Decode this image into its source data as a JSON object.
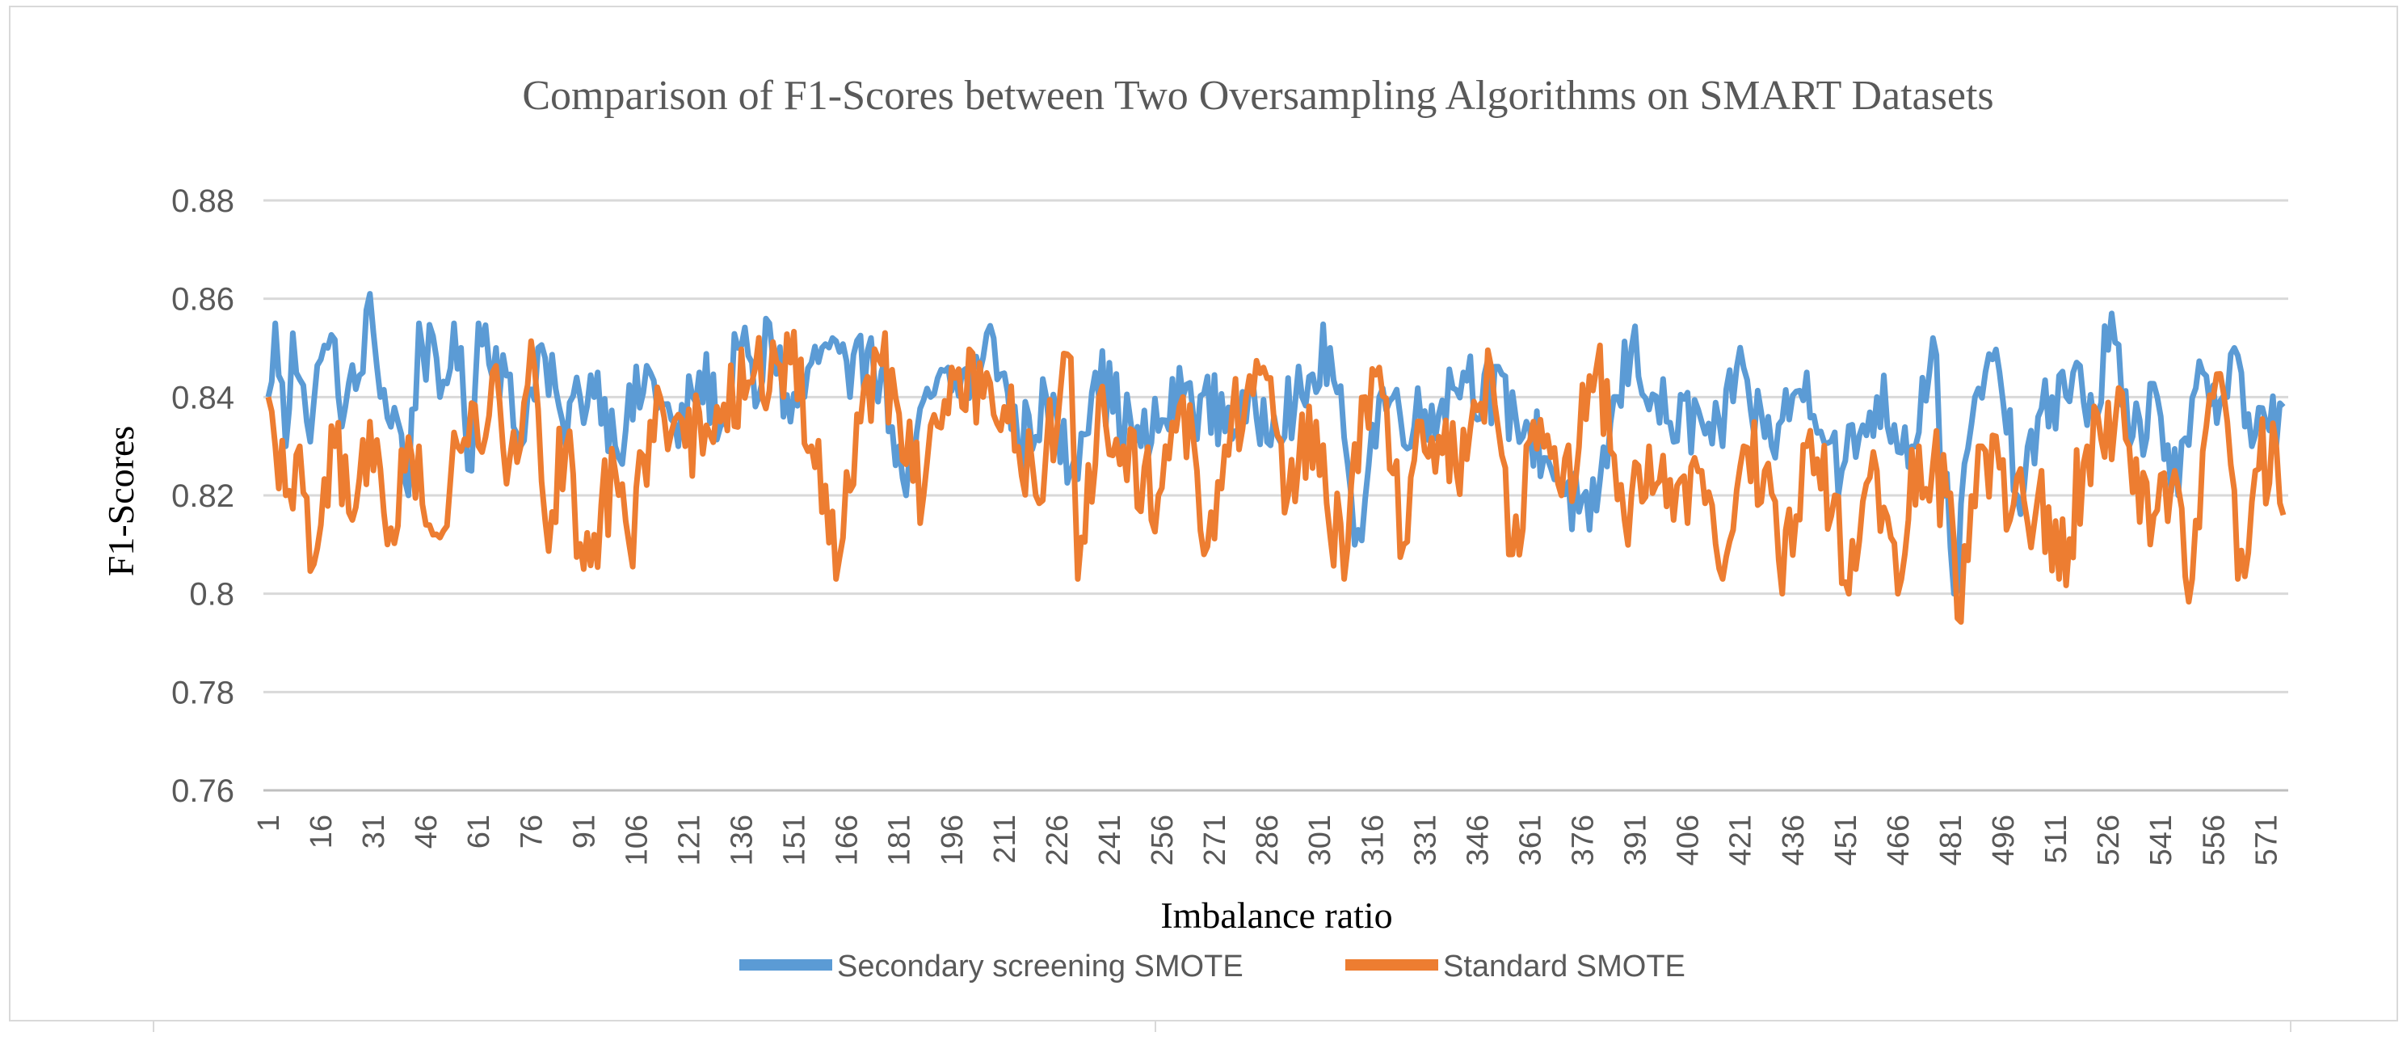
{
  "chart_data": {
    "type": "line",
    "title": "Comparison of F1-Scores between Two Oversampling Algorithms on SMART Datasets",
    "xlabel": "Imbalance ratio",
    "ylabel": "F1-Scores",
    "ylim": [
      0.76,
      0.88
    ],
    "yticks": [
      "0.76",
      "0.78",
      "0.8",
      "0.82",
      "0.84",
      "0.86",
      "0.88"
    ],
    "x_count": 576,
    "xticks": [
      1,
      16,
      31,
      46,
      61,
      76,
      91,
      106,
      121,
      136,
      151,
      166,
      181,
      196,
      211,
      226,
      241,
      256,
      271,
      286,
      301,
      316,
      331,
      346,
      361,
      376,
      391,
      406,
      421,
      436,
      451,
      466,
      481,
      496,
      511,
      526,
      541,
      556,
      571
    ],
    "grid": true,
    "legend": "bottom",
    "series": [
      {
        "name": "Secondary screening SMOTE",
        "color": "#5b9bd5",
        "profile": [
          [
            1,
            0.84
          ],
          [
            3,
            0.855
          ],
          [
            6,
            0.83
          ],
          [
            8,
            0.853
          ],
          [
            12,
            0.835
          ],
          [
            18,
            0.85
          ],
          [
            23,
            0.838
          ],
          [
            28,
            0.845
          ],
          [
            30,
            0.861
          ],
          [
            33,
            0.84
          ],
          [
            38,
            0.835
          ],
          [
            41,
            0.82
          ],
          [
            44,
            0.855
          ],
          [
            50,
            0.84
          ],
          [
            54,
            0.855
          ],
          [
            59,
            0.825
          ],
          [
            61,
            0.855
          ],
          [
            66,
            0.85
          ],
          [
            73,
            0.83
          ],
          [
            78,
            0.85
          ],
          [
            85,
            0.835
          ],
          [
            90,
            0.84
          ],
          [
            95,
            0.845
          ],
          [
            100,
            0.83
          ],
          [
            110,
            0.845
          ],
          [
            118,
            0.83
          ],
          [
            124,
            0.845
          ],
          [
            131,
            0.835
          ],
          [
            135,
            0.85
          ],
          [
            141,
            0.84
          ],
          [
            144,
            0.855
          ],
          [
            150,
            0.835
          ],
          [
            159,
            0.85
          ],
          [
            162,
            0.852
          ],
          [
            167,
            0.84
          ],
          [
            173,
            0.852
          ],
          [
            181,
            0.83
          ],
          [
            183,
            0.82
          ],
          [
            190,
            0.84
          ],
          [
            204,
            0.845
          ],
          [
            208,
            0.852
          ],
          [
            215,
            0.83
          ],
          [
            223,
            0.84
          ],
          [
            230,
            0.825
          ],
          [
            237,
            0.845
          ],
          [
            250,
            0.83
          ],
          [
            262,
            0.84
          ],
          [
            280,
            0.835
          ],
          [
            296,
            0.84
          ],
          [
            304,
            0.85
          ],
          [
            310,
            0.82
          ],
          [
            312,
            0.813
          ],
          [
            318,
            0.84
          ],
          [
            330,
            0.835
          ],
          [
            342,
            0.845
          ],
          [
            360,
            0.835
          ],
          [
            378,
            0.813
          ],
          [
            386,
            0.84
          ],
          [
            390,
            0.85
          ],
          [
            400,
            0.835
          ],
          [
            410,
            0.835
          ],
          [
            416,
            0.83
          ],
          [
            420,
            0.846
          ],
          [
            430,
            0.83
          ],
          [
            440,
            0.845
          ],
          [
            450,
            0.825
          ],
          [
            460,
            0.84
          ],
          [
            470,
            0.83
          ],
          [
            476,
            0.852
          ],
          [
            482,
            0.8
          ],
          [
            488,
            0.84
          ],
          [
            495,
            0.845
          ],
          [
            500,
            0.82
          ],
          [
            510,
            0.84
          ],
          [
            516,
            0.845
          ],
          [
            522,
            0.835
          ],
          [
            527,
            0.857
          ],
          [
            532,
            0.83
          ],
          [
            540,
            0.84
          ],
          [
            546,
            0.82
          ],
          [
            553,
            0.845
          ],
          [
            560,
            0.84
          ],
          [
            562,
            0.85
          ],
          [
            567,
            0.83
          ],
          [
            571,
            0.835
          ],
          [
            576,
            0.838
          ]
        ]
      },
      {
        "name": "Standard SMOTE",
        "color": "#ed7d31",
        "profile": [
          [
            1,
            0.84
          ],
          [
            3,
            0.83
          ],
          [
            6,
            0.82
          ],
          [
            10,
            0.83
          ],
          [
            14,
            0.806
          ],
          [
            20,
            0.83
          ],
          [
            25,
            0.815
          ],
          [
            30,
            0.835
          ],
          [
            35,
            0.81
          ],
          [
            40,
            0.825
          ],
          [
            44,
            0.83
          ],
          [
            48,
            0.812
          ],
          [
            55,
            0.83
          ],
          [
            61,
            0.83
          ],
          [
            65,
            0.845
          ],
          [
            70,
            0.828
          ],
          [
            77,
            0.846
          ],
          [
            80,
            0.815
          ],
          [
            86,
            0.83
          ],
          [
            91,
            0.805
          ],
          [
            100,
            0.825
          ],
          [
            104,
            0.81
          ],
          [
            110,
            0.835
          ],
          [
            120,
            0.83
          ],
          [
            130,
            0.835
          ],
          [
            140,
            0.846
          ],
          [
            148,
            0.84
          ],
          [
            150,
            0.847
          ],
          [
            156,
            0.83
          ],
          [
            160,
            0.822
          ],
          [
            163,
            0.803
          ],
          [
            170,
            0.835
          ],
          [
            175,
            0.848
          ],
          [
            180,
            0.84
          ],
          [
            188,
            0.82
          ],
          [
            196,
            0.846
          ],
          [
            205,
            0.84
          ],
          [
            212,
            0.835
          ],
          [
            220,
            0.82
          ],
          [
            230,
            0.848
          ],
          [
            232,
            0.803
          ],
          [
            238,
            0.84
          ],
          [
            245,
            0.83
          ],
          [
            255,
            0.82
          ],
          [
            262,
            0.84
          ],
          [
            268,
            0.808
          ],
          [
            274,
            0.83
          ],
          [
            285,
            0.846
          ],
          [
            292,
            0.82
          ],
          [
            300,
            0.835
          ],
          [
            308,
            0.803
          ],
          [
            314,
            0.84
          ],
          [
            318,
            0.846
          ],
          [
            325,
            0.81
          ],
          [
            330,
            0.835
          ],
          [
            340,
            0.825
          ],
          [
            350,
            0.846
          ],
          [
            356,
            0.808
          ],
          [
            362,
            0.835
          ],
          [
            370,
            0.82
          ],
          [
            380,
            0.846
          ],
          [
            388,
            0.815
          ],
          [
            395,
            0.83
          ],
          [
            402,
            0.815
          ],
          [
            410,
            0.825
          ],
          [
            416,
            0.803
          ],
          [
            422,
            0.83
          ],
          [
            428,
            0.825
          ],
          [
            433,
            0.8
          ],
          [
            440,
            0.83
          ],
          [
            448,
            0.82
          ],
          [
            452,
            0.8
          ],
          [
            460,
            0.825
          ],
          [
            466,
            0.8
          ],
          [
            472,
            0.83
          ],
          [
            480,
            0.82
          ],
          [
            483,
            0.795
          ],
          [
            490,
            0.83
          ],
          [
            498,
            0.815
          ],
          [
            506,
            0.82
          ],
          [
            512,
            0.803
          ],
          [
            520,
            0.83
          ],
          [
            528,
            0.835
          ],
          [
            532,
            0.83
          ],
          [
            538,
            0.81
          ],
          [
            545,
            0.825
          ],
          [
            550,
            0.803
          ],
          [
            556,
            0.84
          ],
          [
            560,
            0.835
          ],
          [
            563,
            0.803
          ],
          [
            568,
            0.825
          ],
          [
            574,
            0.83
          ],
          [
            576,
            0.816
          ]
        ]
      }
    ]
  }
}
